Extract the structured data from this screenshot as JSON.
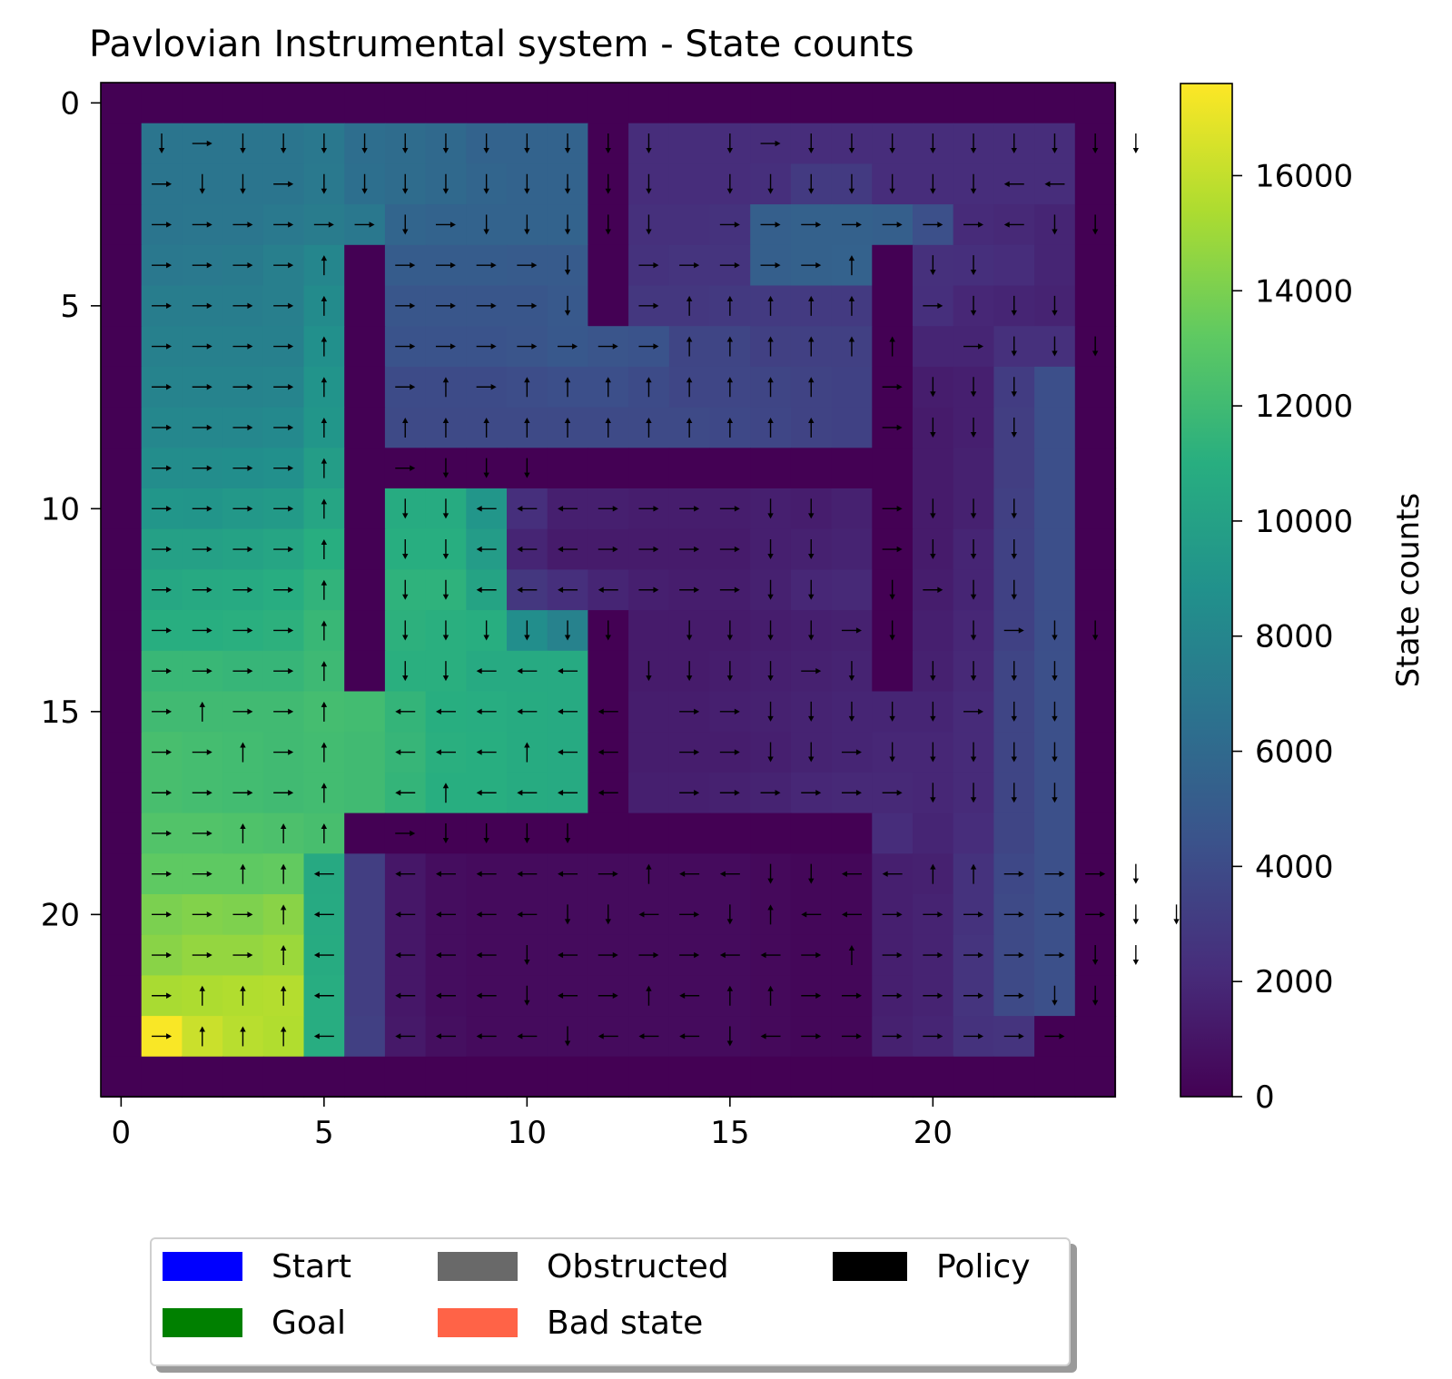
{
  "chart_data": {
    "type": "heatmap",
    "title": "Pavlovian Instrumental system - State counts",
    "xlim": [
      -0.5,
      24.5
    ],
    "ylim": [
      24.5,
      -0.5
    ],
    "x_ticks": [
      0,
      5,
      10,
      15,
      20
    ],
    "y_ticks": [
      0,
      5,
      10,
      15,
      20
    ],
    "grid": false,
    "colorscale": "viridis",
    "colorbar": {
      "label": "State counts",
      "range": [
        0,
        17600
      ],
      "ticks": [
        0,
        2000,
        4000,
        6000,
        8000,
        10000,
        12000,
        14000,
        16000
      ]
    },
    "values": [
      [
        0,
        0,
        0,
        0,
        0,
        0,
        0,
        0,
        0,
        0,
        0,
        0,
        0,
        0,
        0,
        0,
        0,
        0,
        0,
        0,
        0,
        0,
        0,
        0,
        0
      ],
      [
        0,
        6800,
        6800,
        6800,
        6800,
        7000,
        6300,
        6200,
        6000,
        5600,
        5600,
        5600,
        0,
        2200,
        2200,
        2200,
        2200,
        2200,
        2200,
        2200,
        2200,
        2200,
        2200,
        2200,
        0
      ],
      [
        0,
        6800,
        6800,
        6800,
        6800,
        7100,
        6400,
        6200,
        6000,
        5700,
        5600,
        5600,
        0,
        2200,
        2200,
        2200,
        2300,
        3000,
        3000,
        2200,
        2200,
        2200,
        2200,
        2200,
        0
      ],
      [
        0,
        6800,
        6900,
        6900,
        7100,
        7300,
        7000,
        5700,
        5600,
        5600,
        5600,
        5600,
        0,
        2400,
        2400,
        2500,
        5300,
        5400,
        5400,
        5300,
        4300,
        2100,
        2000,
        1800,
        0
      ],
      [
        0,
        7000,
        7100,
        7200,
        7500,
        8000,
        0,
        5100,
        5100,
        5100,
        5000,
        5000,
        0,
        2500,
        2600,
        2600,
        5300,
        5400,
        5500,
        0,
        2400,
        2300,
        2200,
        1800,
        0
      ],
      [
        0,
        7400,
        7400,
        7400,
        7500,
        8400,
        0,
        4700,
        4700,
        4700,
        4700,
        4900,
        0,
        2800,
        2800,
        2900,
        3000,
        3000,
        3000,
        0,
        2300,
        1900,
        1800,
        1700,
        0
      ],
      [
        0,
        7600,
        7600,
        7600,
        7600,
        8700,
        0,
        4500,
        4500,
        4500,
        4600,
        4800,
        4600,
        4500,
        3600,
        3600,
        3300,
        3300,
        3300,
        0,
        1800,
        1800,
        2400,
        2400,
        0
      ],
      [
        0,
        7800,
        7800,
        7800,
        7900,
        9000,
        0,
        4000,
        4000,
        4000,
        4100,
        4200,
        4200,
        4000,
        3700,
        3700,
        3600,
        3500,
        3400,
        0,
        1400,
        1500,
        3100,
        4200,
        0
      ],
      [
        0,
        8100,
        8100,
        8100,
        8200,
        9200,
        0,
        3900,
        3900,
        3900,
        3900,
        3900,
        3900,
        3900,
        3900,
        3800,
        3700,
        3500,
        3400,
        0,
        1300,
        1500,
        3200,
        4200,
        0
      ],
      [
        0,
        8500,
        8500,
        8600,
        8700,
        9700,
        0,
        0,
        0,
        0,
        0,
        0,
        0,
        0,
        0,
        0,
        0,
        0,
        0,
        0,
        1300,
        1600,
        3200,
        4200,
        0
      ],
      [
        0,
        9200,
        9100,
        9300,
        9500,
        10300,
        0,
        10800,
        10800,
        9200,
        2300,
        1500,
        1500,
        1400,
        1400,
        1400,
        1500,
        1400,
        1600,
        0,
        1300,
        1600,
        3300,
        4200,
        0
      ],
      [
        0,
        9900,
        9900,
        10100,
        10300,
        11000,
        0,
        11000,
        11000,
        9600,
        1800,
        1300,
        1300,
        1300,
        1300,
        1300,
        1500,
        1600,
        1700,
        0,
        1300,
        1800,
        3400,
        4200,
        0
      ],
      [
        0,
        10500,
        10600,
        10700,
        10900,
        11400,
        0,
        11300,
        11300,
        10200,
        2800,
        2300,
        1800,
        1500,
        1400,
        1400,
        1600,
        1900,
        2000,
        0,
        1400,
        1800,
        3400,
        4200,
        0
      ],
      [
        0,
        11000,
        11000,
        11100,
        11200,
        11700,
        0,
        11200,
        11100,
        11000,
        8600,
        7700,
        0,
        1300,
        1300,
        1300,
        1400,
        1500,
        1600,
        0,
        1500,
        1900,
        3400,
        4200,
        0
      ],
      [
        0,
        11700,
        11700,
        11600,
        11600,
        11900,
        0,
        11100,
        11100,
        10700,
        10700,
        10700,
        0,
        1300,
        1300,
        1400,
        1500,
        1600,
        1700,
        0,
        1600,
        2000,
        3600,
        4300,
        0
      ],
      [
        0,
        12000,
        12000,
        12000,
        12000,
        12200,
        12100,
        11500,
        11000,
        10900,
        10800,
        10700,
        0,
        1400,
        1400,
        1500,
        1600,
        1700,
        1800,
        1800,
        1800,
        2100,
        3600,
        4300,
        0
      ],
      [
        0,
        12300,
        12200,
        12100,
        12000,
        12100,
        12000,
        11600,
        11100,
        11000,
        10800,
        10700,
        0,
        1400,
        1400,
        1400,
        1500,
        1700,
        1800,
        1900,
        1900,
        2100,
        3600,
        4300,
        0
      ],
      [
        0,
        12300,
        12200,
        12100,
        12000,
        12100,
        12000,
        11500,
        11000,
        11000,
        10800,
        10700,
        0,
        1500,
        1500,
        1600,
        1700,
        1900,
        2000,
        2000,
        1900,
        2100,
        3600,
        4300,
        0
      ],
      [
        0,
        12700,
        12700,
        12600,
        12500,
        12300,
        0,
        0,
        0,
        0,
        0,
        0,
        0,
        0,
        0,
        0,
        0,
        0,
        0,
        2200,
        1800,
        2200,
        3600,
        4300,
        0
      ],
      [
        0,
        13200,
        13200,
        13200,
        13300,
        10600,
        3200,
        1100,
        600,
        500,
        500,
        500,
        500,
        500,
        500,
        500,
        400,
        300,
        300,
        1500,
        1600,
        2500,
        3800,
        4300,
        0
      ],
      [
        0,
        14000,
        14200,
        14100,
        14400,
        10700,
        3200,
        1100,
        600,
        500,
        500,
        500,
        500,
        500,
        500,
        500,
        400,
        300,
        300,
        1500,
        1700,
        2500,
        3900,
        4300,
        0
      ],
      [
        0,
        14400,
        14700,
        14700,
        14900,
        10800,
        3200,
        1100,
        600,
        500,
        500,
        500,
        500,
        500,
        500,
        500,
        400,
        300,
        300,
        1500,
        1700,
        2600,
        3900,
        4300,
        0
      ],
      [
        0,
        15300,
        15400,
        15500,
        15600,
        10900,
        3200,
        1100,
        600,
        500,
        500,
        500,
        500,
        500,
        500,
        500,
        400,
        300,
        300,
        1500,
        1700,
        2600,
        3900,
        4300,
        0
      ],
      [
        0,
        17500,
        16200,
        15700,
        15500,
        10900,
        3300,
        1200,
        700,
        500,
        500,
        500,
        500,
        500,
        500,
        500,
        400,
        300,
        300,
        1600,
        1800,
        2500,
        2600,
        0,
        0
      ],
      [
        0,
        0,
        0,
        0,
        0,
        0,
        0,
        0,
        0,
        0,
        0,
        0,
        0,
        0,
        0,
        0,
        0,
        0,
        0,
        0,
        0,
        0,
        0,
        0,
        0
      ]
    ],
    "policy": [
      "",
      " DRDDDDDDDDDDD DRDDDDDDDDD ",
      " RDDRDDDDDDDDD DDDDDDDLL ",
      " RRRRRRDRDDDDD RRRRRRRLDD ",
      " RRRRU RRRRD RRRRRU DD ",
      " RRRRU RRRRD RUUUUU RDDD ",
      " RRRRU RRRRRRRUUUUUU RDDD ",
      " RRRRU RURUUUUUUUU RDDD ",
      " RRRRU UUUUUUUUUUU RDDD ",
      " RRRRU RDDD ",
      " RRRRU DDLLLRRRRDD RDDD ",
      " RRRRU DDLLLRRRRDD RDDD ",
      " RRRRU DDLLLLRRRDD DRDD ",
      " RRRRU DDDDDD DDDDRD DRDD ",
      " RRRRU DDLLL DDDDRD DDDD ",
      " RURRU LLLLLL RRDDDDDRDD ",
      " RRURU LLLULL RRDDRDDDDD ",
      " RRRRU LULLLL RRRRRRDDDD ",
      " RRUUU RDDDD ",
      " RRUUL LLLLLRULLDDLLUURRRD ",
      " RRRUL LLLLDDLRDULLRRRRRRDD ",
      " RRRUL LLLDLRRRLLRURRRRRDD ",
      " RUUUL LLLDLRULUURRRRRRDD ",
      " RUUUL LLLLDLLLDLRRRRRRR ",
      ""
    ]
  },
  "legend": {
    "items": [
      {
        "label": "Start",
        "color": "#0000ff"
      },
      {
        "label": "Obstructed",
        "color": "#696969"
      },
      {
        "label": "Policy",
        "color": "#000000"
      },
      {
        "label": "Goal",
        "color": "#008000"
      },
      {
        "label": "Bad state",
        "color": "#ff6347"
      }
    ]
  }
}
